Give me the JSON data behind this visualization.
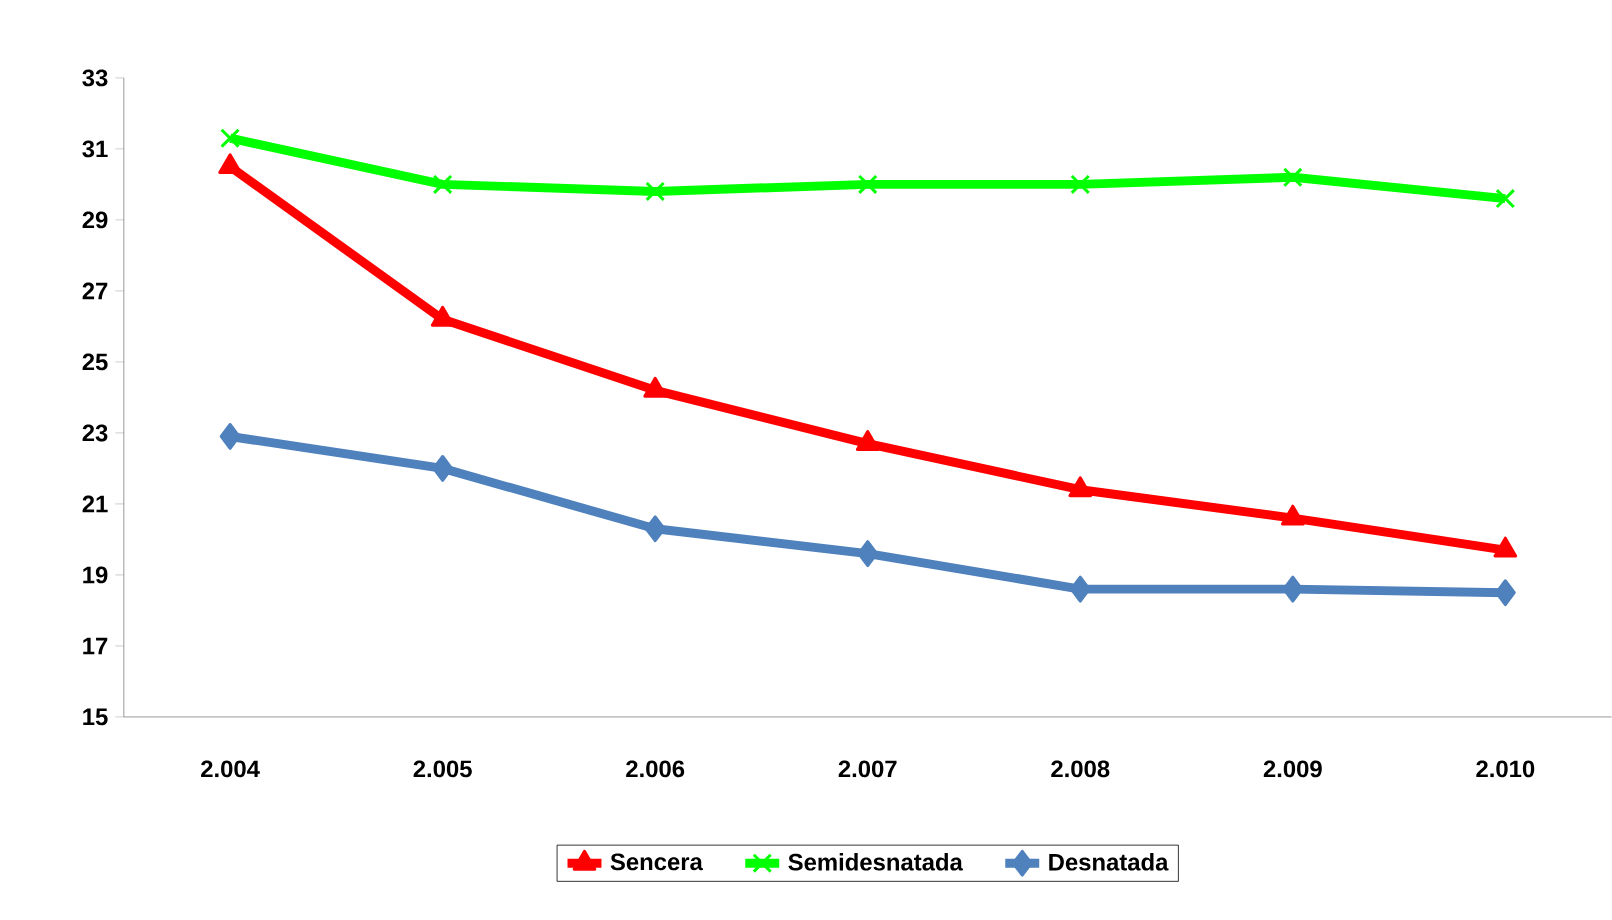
{
  "chart_data": {
    "type": "line",
    "categories": [
      "2.004",
      "2.005",
      "2.006",
      "2.007",
      "2.008",
      "2.009",
      "2.010"
    ],
    "series": [
      {
        "name": "Sencera",
        "color": "#ff0000",
        "marker": "triangle",
        "values": [
          30.5,
          26.2,
          24.2,
          22.7,
          21.4,
          20.6,
          19.7
        ]
      },
      {
        "name": "Semidesnatada",
        "color": "#00ff00",
        "marker": "cross",
        "values": [
          31.3,
          30.0,
          29.8,
          30.0,
          30.0,
          30.2,
          29.6
        ]
      },
      {
        "name": "Desnatada",
        "color": "#4f81bd",
        "marker": "diamond",
        "values": [
          22.9,
          22.0,
          20.3,
          19.6,
          18.6,
          18.6,
          18.5
        ]
      }
    ],
    "ylim": [
      15,
      33
    ],
    "yticks": [
      15,
      17,
      19,
      21,
      23,
      25,
      27,
      29,
      31,
      33
    ],
    "grid": false,
    "legend": "bottom",
    "line_style": "solid"
  }
}
